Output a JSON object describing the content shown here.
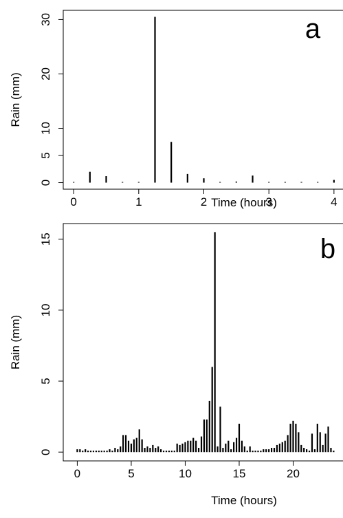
{
  "chart_data": [
    {
      "type": "bar",
      "label": "a",
      "x_label": "Time (hours)",
      "y_label": "Rain (mm)",
      "color": "#000000",
      "x": [
        0,
        0.25,
        0.5,
        0.75,
        1,
        1.25,
        1.5,
        1.75,
        2,
        2.25,
        2.5,
        2.75,
        3,
        3.25,
        3.5,
        3.75,
        4
      ],
      "values": [
        0,
        2,
        1.2,
        0,
        0,
        30.5,
        7.5,
        1.6,
        0.8,
        0,
        0.2,
        1.3,
        0,
        0,
        0,
        0,
        0.5
      ],
      "xlim": [
        -0.16,
        4.16
      ],
      "ylim": [
        -1.2,
        31.7
      ],
      "xticks": [
        0,
        1,
        2,
        3,
        4
      ],
      "yticks": [
        0,
        5,
        10,
        20,
        30
      ]
    },
    {
      "type": "bar",
      "label": "b",
      "x_label": "Time (hours)",
      "y_label": "Rain (mm)",
      "color": "#000000",
      "x": [
        0,
        0.25,
        0.5,
        0.75,
        1,
        1.25,
        1.5,
        1.75,
        2,
        2.25,
        2.5,
        2.75,
        3,
        3.25,
        3.5,
        3.75,
        4,
        4.25,
        4.5,
        4.75,
        5,
        5.25,
        5.5,
        5.75,
        6,
        6.25,
        6.5,
        6.75,
        7,
        7.25,
        7.5,
        7.75,
        8,
        8.25,
        8.5,
        8.75,
        9,
        9.25,
        9.5,
        9.75,
        10,
        10.25,
        10.5,
        10.75,
        11,
        11.25,
        11.5,
        11.75,
        12,
        12.25,
        12.5,
        12.75,
        13,
        13.25,
        13.5,
        13.75,
        14,
        14.25,
        14.5,
        14.75,
        15,
        15.25,
        15.5,
        15.75,
        16,
        16.25,
        16.5,
        16.75,
        17,
        17.25,
        17.5,
        17.75,
        18,
        18.25,
        18.5,
        18.75,
        19,
        19.25,
        19.5,
        19.75,
        20,
        20.25,
        20.5,
        20.75,
        21,
        21.25,
        21.5,
        21.75,
        22,
        22.25,
        22.5,
        22.75,
        23,
        23.25,
        23.5,
        23.75
      ],
      "values": [
        0.2,
        0.2,
        0.1,
        0.2,
        0.1,
        0.1,
        0.1,
        0.1,
        0.1,
        0.1,
        0.1,
        0.1,
        0.2,
        0.1,
        0.3,
        0.2,
        0.4,
        1.2,
        1.2,
        0.8,
        0.6,
        0.9,
        1.0,
        1.6,
        0.9,
        0.3,
        0.4,
        0.3,
        0.5,
        0.3,
        0.4,
        0.2,
        0.1,
        0.1,
        0.1,
        0.1,
        0.1,
        0.6,
        0.5,
        0.6,
        0.7,
        0.8,
        0.8,
        1.0,
        0.8,
        0.3,
        1.1,
        2.3,
        2.3,
        3.6,
        6.0,
        15.5,
        0.4,
        3.2,
        0.3,
        0.6,
        0.8,
        0.2,
        0.7,
        1.0,
        2.0,
        0.8,
        0.4,
        0.1,
        0.4,
        0.1,
        0.1,
        0.1,
        0.1,
        0.2,
        0.2,
        0.2,
        0.3,
        0.3,
        0.5,
        0.6,
        0.7,
        0.8,
        1.2,
        2.0,
        2.2,
        2.0,
        1.4,
        0.5,
        0.3,
        0.2,
        0.1,
        1.3,
        0.2,
        2.0,
        1.4,
        0.5,
        1.3,
        1.8,
        0.3,
        0.1
      ],
      "xlim": [
        -1.3,
        25
      ],
      "ylim": [
        -0.62,
        16.1
      ],
      "xticks": [
        0,
        5,
        10,
        15,
        20
      ],
      "yticks": [
        0,
        5,
        10,
        15
      ]
    }
  ]
}
